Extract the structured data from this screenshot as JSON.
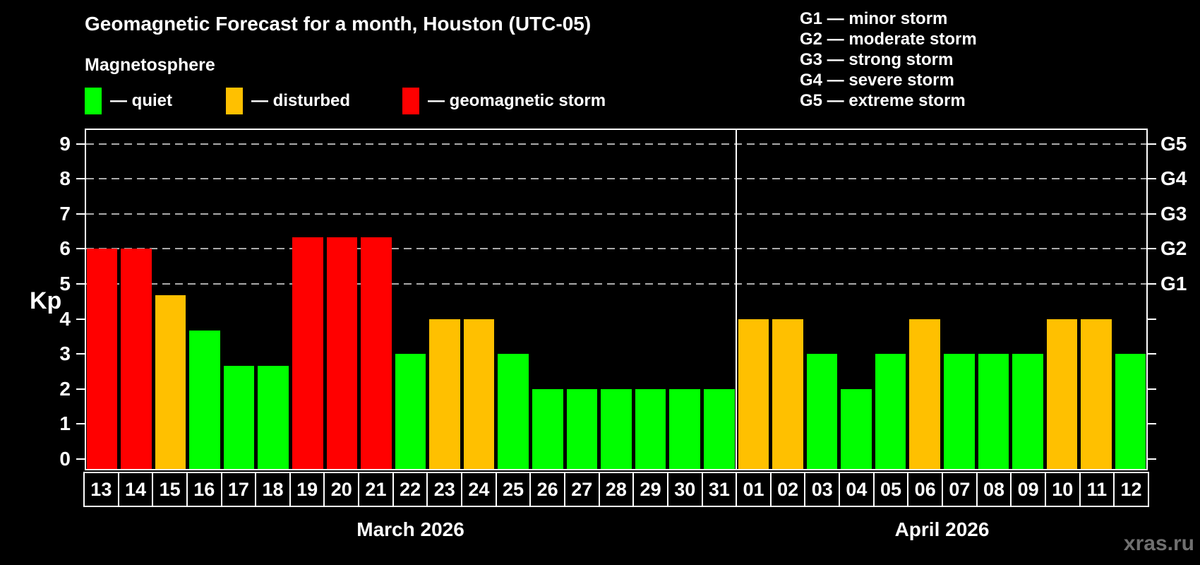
{
  "header": {
    "title": "Geomagnetic Forecast for a month, Houston (UTC-05)",
    "subtitle": "Magnetosphere"
  },
  "legend": {
    "items": [
      {
        "key": "quiet",
        "label": "— quiet",
        "color": "#00ff00"
      },
      {
        "key": "disturbed",
        "label": "— disturbed",
        "color": "#ffc000"
      },
      {
        "key": "storm",
        "label": "— geomagnetic storm",
        "color": "#ff0000"
      }
    ]
  },
  "g_legend": {
    "items": [
      "G1 — minor storm",
      "G2 — moderate storm",
      "G3 — strong storm",
      "G4 — severe storm",
      "G5 — extreme storm"
    ]
  },
  "chart_data": {
    "type": "bar",
    "ylabel": "Kp",
    "ylim": [
      -0.32,
      9.4
    ],
    "y_ticks": [
      0,
      1,
      2,
      3,
      4,
      5,
      6,
      7,
      8,
      9
    ],
    "gridlines_at": [
      5,
      6,
      7,
      8,
      9
    ],
    "grid": true,
    "right_axis_labels": [
      {
        "label": "G1",
        "kp": 5
      },
      {
        "label": "G2",
        "kp": 6
      },
      {
        "label": "G3",
        "kp": 7
      },
      {
        "label": "G4",
        "kp": 8
      },
      {
        "label": "G5",
        "kp": 9
      }
    ],
    "status_colors": {
      "quiet": "#00ff00",
      "disturbed": "#ffc000",
      "storm": "#ff0000"
    },
    "months": [
      {
        "label": "March 2026",
        "days": [
          {
            "day": "13",
            "kp": 6.0,
            "status": "storm"
          },
          {
            "day": "14",
            "kp": 6.0,
            "status": "storm"
          },
          {
            "day": "15",
            "kp": 4.67,
            "status": "disturbed"
          },
          {
            "day": "16",
            "kp": 3.67,
            "status": "quiet"
          },
          {
            "day": "17",
            "kp": 2.67,
            "status": "quiet"
          },
          {
            "day": "18",
            "kp": 2.67,
            "status": "quiet"
          },
          {
            "day": "19",
            "kp": 6.33,
            "status": "storm"
          },
          {
            "day": "20",
            "kp": 6.33,
            "status": "storm"
          },
          {
            "day": "21",
            "kp": 6.33,
            "status": "storm"
          },
          {
            "day": "22",
            "kp": 3.0,
            "status": "quiet"
          },
          {
            "day": "23",
            "kp": 4.0,
            "status": "disturbed"
          },
          {
            "day": "24",
            "kp": 4.0,
            "status": "disturbed"
          },
          {
            "day": "25",
            "kp": 3.0,
            "status": "quiet"
          },
          {
            "day": "26",
            "kp": 2.0,
            "status": "quiet"
          },
          {
            "day": "27",
            "kp": 2.0,
            "status": "quiet"
          },
          {
            "day": "28",
            "kp": 2.0,
            "status": "quiet"
          },
          {
            "day": "29",
            "kp": 2.0,
            "status": "quiet"
          },
          {
            "day": "30",
            "kp": 2.0,
            "status": "quiet"
          },
          {
            "day": "31",
            "kp": 2.0,
            "status": "quiet"
          }
        ]
      },
      {
        "label": "April 2026",
        "days": [
          {
            "day": "01",
            "kp": 4.0,
            "status": "disturbed"
          },
          {
            "day": "02",
            "kp": 4.0,
            "status": "disturbed"
          },
          {
            "day": "03",
            "kp": 3.0,
            "status": "quiet"
          },
          {
            "day": "04",
            "kp": 2.0,
            "status": "quiet"
          },
          {
            "day": "05",
            "kp": 3.0,
            "status": "quiet"
          },
          {
            "day": "06",
            "kp": 4.0,
            "status": "disturbed"
          },
          {
            "day": "07",
            "kp": 3.0,
            "status": "quiet"
          },
          {
            "day": "08",
            "kp": 3.0,
            "status": "quiet"
          },
          {
            "day": "09",
            "kp": 3.0,
            "status": "quiet"
          },
          {
            "day": "10",
            "kp": 4.0,
            "status": "disturbed"
          },
          {
            "day": "11",
            "kp": 4.0,
            "status": "disturbed"
          },
          {
            "day": "12",
            "kp": 3.0,
            "status": "quiet"
          }
        ]
      }
    ]
  },
  "watermark": "xras.ru",
  "colors": {
    "background": "#000000",
    "axis": "#ffffff",
    "gridline": "#aaaaaa",
    "watermark": "#707070"
  }
}
